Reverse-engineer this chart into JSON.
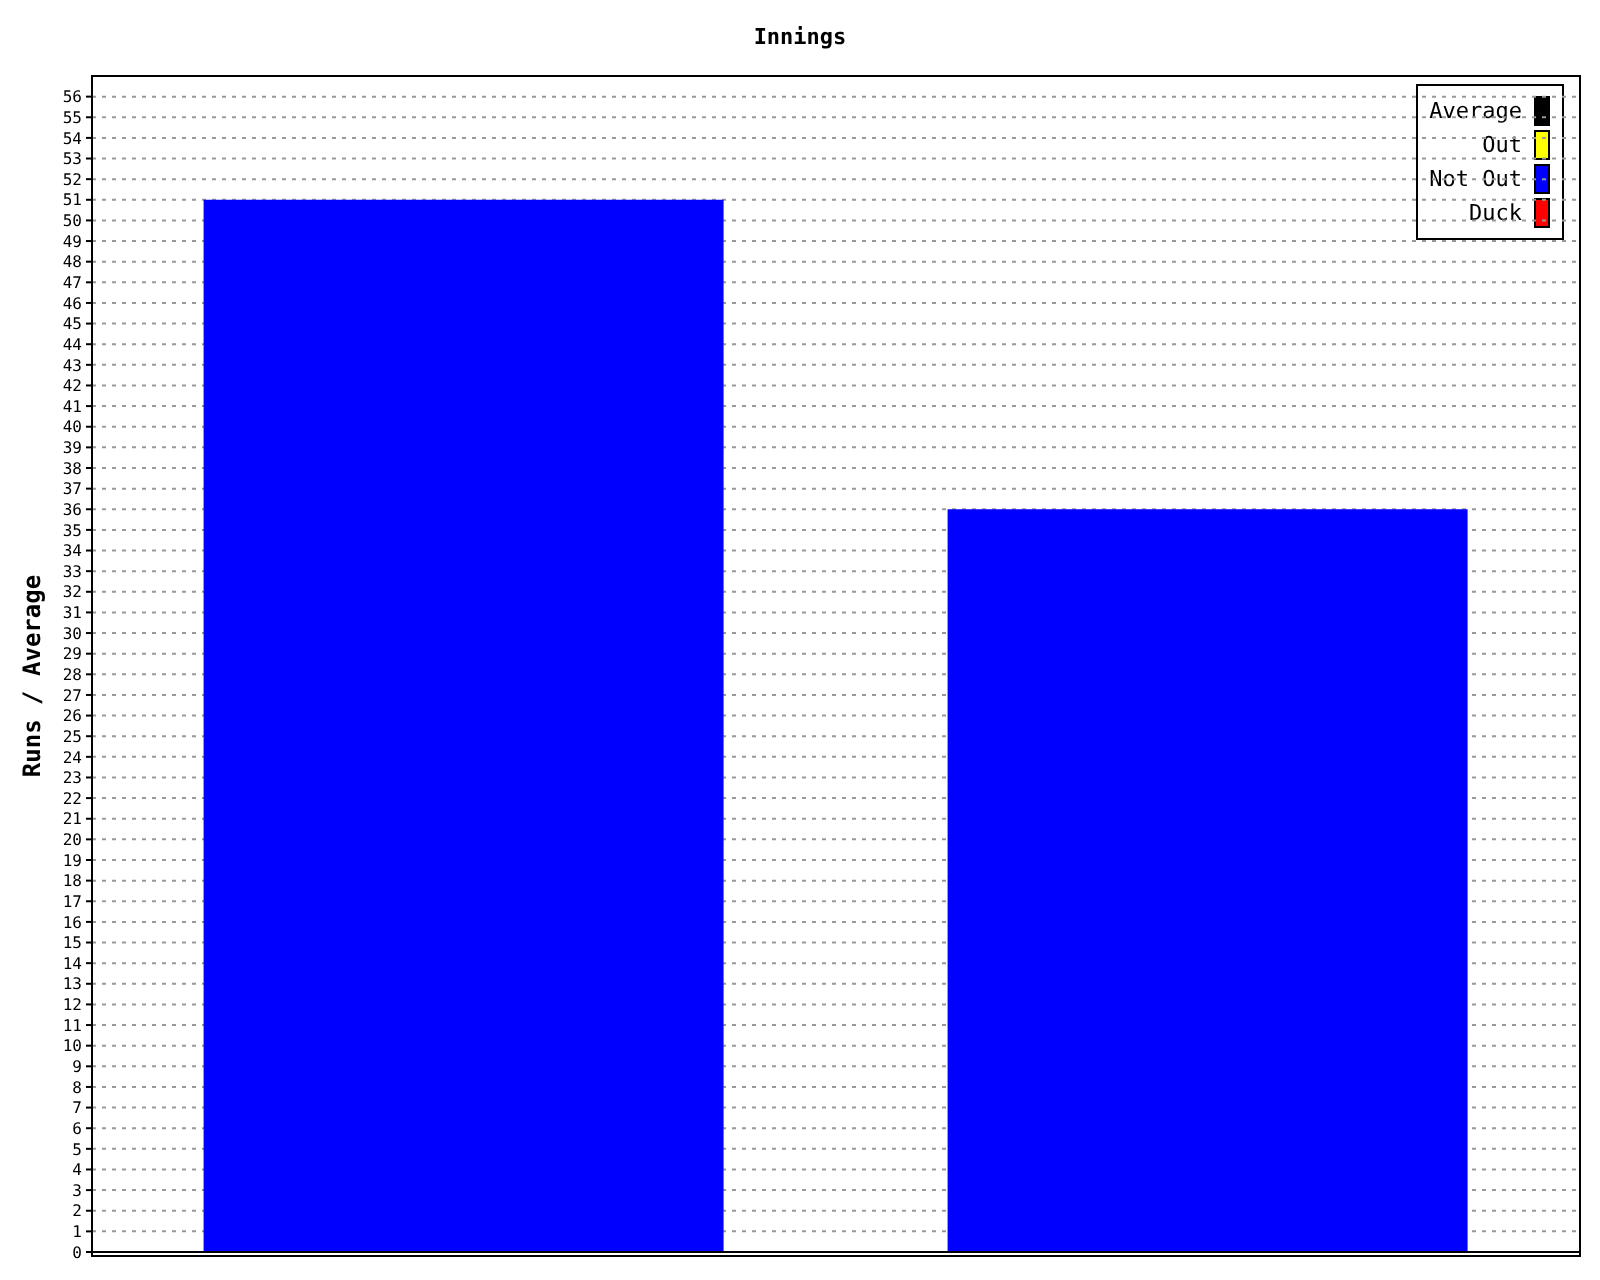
{
  "chart_data": {
    "type": "bar",
    "title": "Innings",
    "ylabel": "Runs / Average",
    "categories": [
      null,
      null
    ],
    "series": [
      {
        "name": "Average",
        "color": "#000000",
        "values": [
          null,
          null
        ]
      },
      {
        "name": "Out",
        "color": "#ffff00",
        "values": [
          null,
          null
        ]
      },
      {
        "name": "Not Out",
        "color": "#0000ff",
        "values": [
          51,
          36
        ]
      },
      {
        "name": "Duck",
        "color": "#ff0000",
        "values": [
          null,
          null
        ]
      }
    ],
    "stacked": true,
    "ylim": [
      0,
      57
    ],
    "yticks": [
      0,
      1,
      2,
      3,
      4,
      5,
      6,
      7,
      8,
      9,
      10,
      11,
      12,
      13,
      14,
      15,
      16,
      17,
      18,
      19,
      20,
      21,
      22,
      23,
      24,
      25,
      26,
      27,
      28,
      29,
      30,
      31,
      32,
      33,
      34,
      35,
      36,
      37,
      38,
      39,
      40,
      41,
      42,
      43,
      44,
      45,
      46,
      47,
      48,
      49,
      50,
      51,
      52,
      53,
      54,
      55,
      56
    ],
    "grid": "y",
    "legend": "top right"
  }
}
